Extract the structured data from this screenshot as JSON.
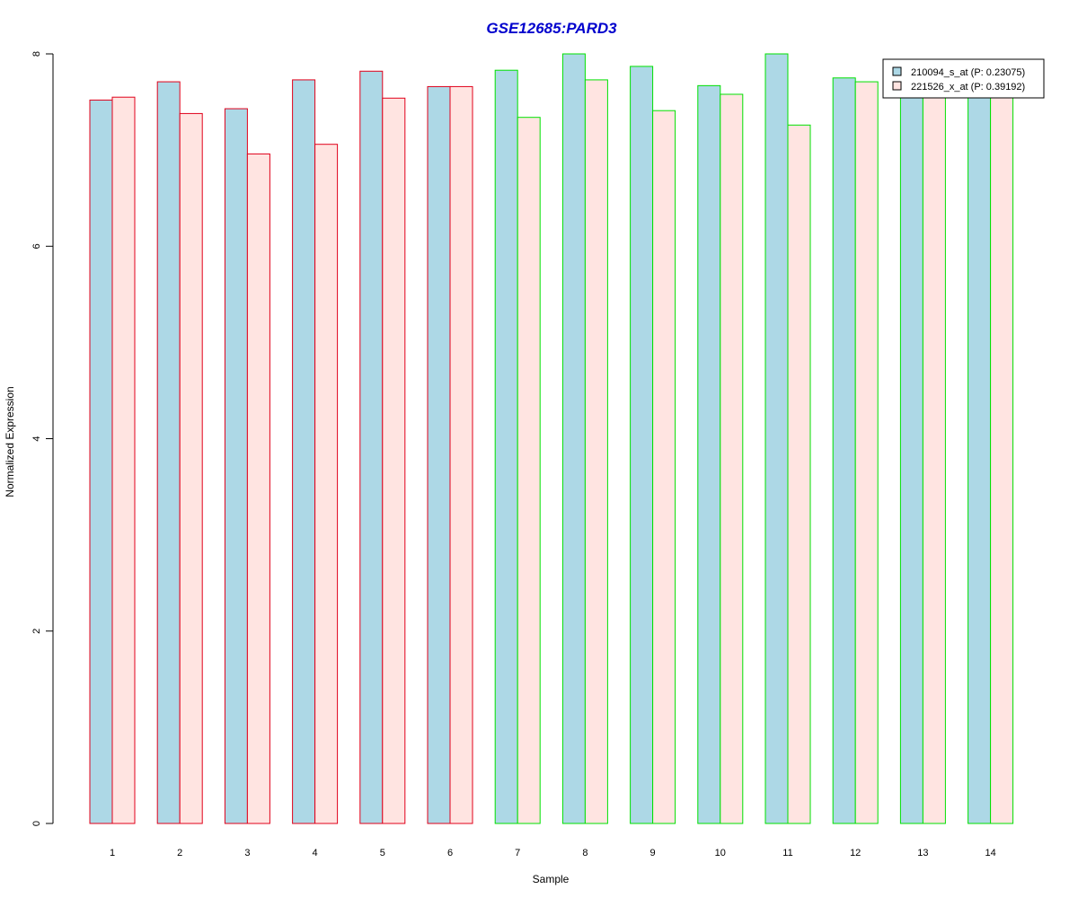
{
  "chart_data": {
    "type": "bar",
    "title": "GSE12685:PARD3",
    "xlabel": "Sample",
    "ylabel": "Normalized Expression",
    "ylim": [
      0,
      8
    ],
    "y_ticks": [
      "0",
      "2",
      "4",
      "6",
      "8"
    ],
    "grid": false,
    "legend_position": "top-right",
    "categories": [
      "1",
      "2",
      "3",
      "4",
      "5",
      "6",
      "7",
      "8",
      "9",
      "10",
      "11",
      "12",
      "13",
      "14"
    ],
    "series": [
      {
        "name": "210094_s_at (P: 0.23075)",
        "values": [
          7.52,
          7.71,
          7.43,
          7.73,
          7.82,
          7.66,
          7.83,
          8.0,
          7.87,
          7.67,
          8.0,
          7.75,
          7.75,
          7.76
        ]
      },
      {
        "name": "221526_x_at (P: 0.39192)",
        "values": [
          7.55,
          7.38,
          6.96,
          7.06,
          7.54,
          7.66,
          7.34,
          7.73,
          7.41,
          7.58,
          7.26,
          7.71,
          7.7,
          7.71
        ]
      }
    ],
    "colors": {
      "series_fills": [
        "#add8e6",
        "#ffe4e1"
      ],
      "group_outline_colors": [
        "#e0001a",
        "#e0001a",
        "#e0001a",
        "#e0001a",
        "#e0001a",
        "#e0001a",
        "#00e000",
        "#00e000",
        "#00e000",
        "#00e000",
        "#00e000",
        "#00e000",
        "#00e000",
        "#00e000"
      ],
      "title": "#0000cd",
      "axis": "#000000"
    }
  }
}
